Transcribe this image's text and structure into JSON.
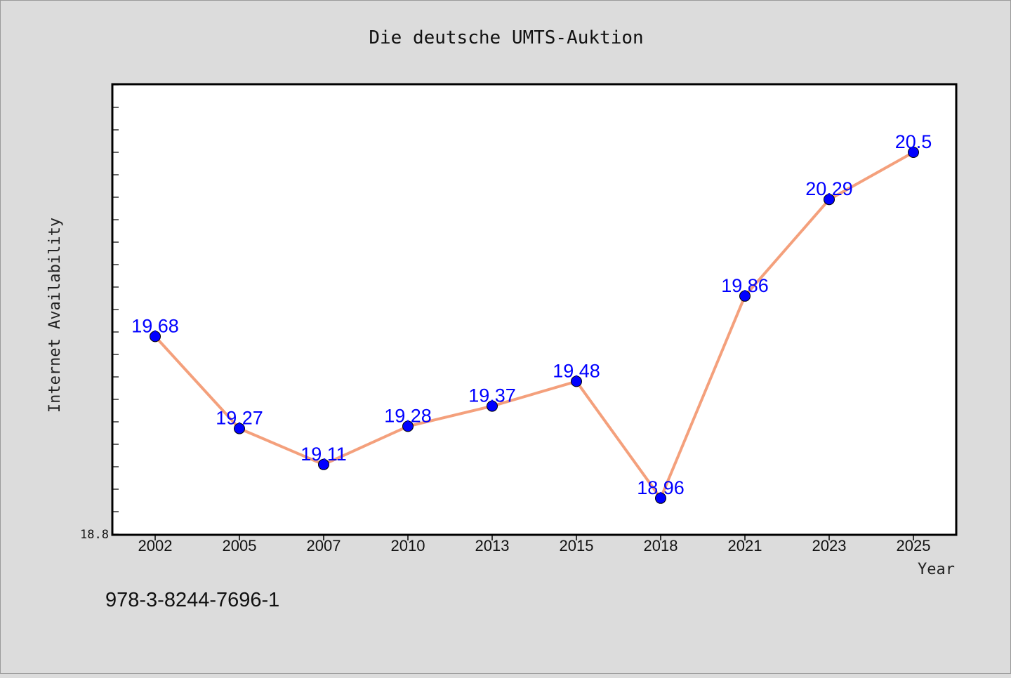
{
  "chart_data": {
    "type": "line",
    "title": "Die deutsche UMTS-Auktion",
    "xlabel": "Year",
    "ylabel": "Internet Availability",
    "categories": [
      "2002",
      "2005",
      "2007",
      "2010",
      "2013",
      "2015",
      "2018",
      "2021",
      "2023",
      "2025"
    ],
    "series": [
      {
        "values": [
          19.68,
          19.27,
          19.11,
          19.28,
          19.37,
          19.48,
          18.96,
          19.86,
          20.29,
          20.5
        ]
      }
    ],
    "data_labels": [
      "19.68",
      "19.27",
      "19.11",
      "19.28",
      "19.37",
      "19.48",
      "18.96",
      "19.86",
      "20.29",
      "20.5"
    ],
    "ylim": [
      18.8,
      20.8
    ],
    "y_tick_label": "18.8",
    "grid": false,
    "line_color": "#f4a07c",
    "marker_color": "#0000ff",
    "label_color": "#0000ff"
  },
  "footer": {
    "isbn": "978-3-8244-7696-1"
  }
}
